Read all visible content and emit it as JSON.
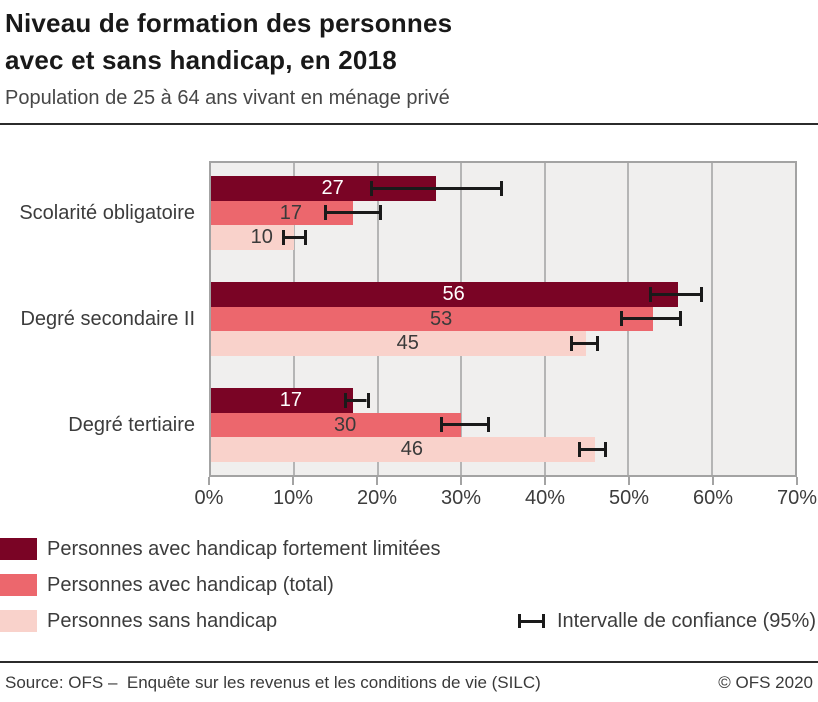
{
  "header": {
    "title_line1": "Niveau de formation des personnes",
    "title_line2": "avec et sans handicap, en 2018",
    "subtitle": "Population de 25 à 64 ans vivant en ménage privé"
  },
  "chart_data": {
    "type": "bar",
    "orientation": "horizontal",
    "title": "Niveau de formation des personnes avec et sans handicap, en 2018",
    "subtitle": "Population de 25 à 64 ans vivant en ménage privé",
    "categories": [
      "Scolarité obligatoire",
      "Degré secondaire II",
      "Degré tertiaire"
    ],
    "series": [
      {
        "name": "Personnes avec handicap fortement limitées",
        "color": "#7a0425",
        "label_color": "#ffffff",
        "values": [
          27,
          56,
          17
        ],
        "ci95": [
          [
            19,
            35
          ],
          [
            52.5,
            59
          ],
          [
            16,
            19
          ]
        ]
      },
      {
        "name": "Personnes avec handicap (total)",
        "color": "#ec676d",
        "label_color": "#3a3a3a",
        "values": [
          17,
          53,
          30
        ],
        "ci95": [
          [
            13.5,
            20.5
          ],
          [
            49,
            56.5
          ],
          [
            27.5,
            33.5
          ]
        ]
      },
      {
        "name": "Personnes sans handicap",
        "color": "#f9d2cb",
        "label_color": "#3a3a3a",
        "values": [
          10,
          45,
          46
        ],
        "ci95": [
          [
            8.5,
            11.5
          ],
          [
            43,
            46.5
          ],
          [
            44,
            47.5
          ]
        ]
      }
    ],
    "xlim": [
      0,
      70
    ],
    "xticks": [
      0,
      10,
      20,
      30,
      40,
      50,
      60,
      70
    ],
    "xtick_labels": [
      "0%",
      "10%",
      "20%",
      "30%",
      "40%",
      "50%",
      "60%",
      "70%"
    ],
    "grid": true,
    "legend_position": "bottom-left",
    "ci_legend_label": "Intervalle de confiance (95%)",
    "error_bar_color": "#1a1a1a",
    "plot_background": "#f0efee",
    "gridline_color": "#b5b5b5"
  },
  "footer": {
    "source": "Source: OFS –  Enquête sur les revenus et les conditions de vie (SILC)",
    "copyright": "© OFS 2020"
  }
}
